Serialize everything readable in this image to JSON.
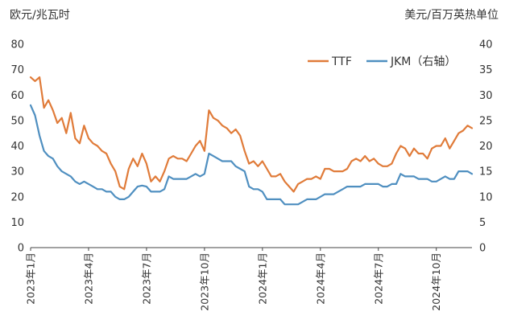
{
  "chart_data": {
    "type": "line",
    "left_axis_unit": "欧元/兆瓦时",
    "right_axis_unit": "美元/百万英热单位",
    "ylim_left": [
      0,
      80
    ],
    "yticks_left": [
      0,
      10,
      20,
      30,
      40,
      50,
      60,
      70,
      80
    ],
    "ylim_right": [
      0,
      40
    ],
    "yticks_right": [
      0,
      5,
      10,
      15,
      20,
      25,
      30,
      35,
      40
    ],
    "x_tick_labels": [
      "2023年1月",
      "2023年4月",
      "2023年7月",
      "2023年10月",
      "2024年1月",
      "2024年4月",
      "2024年7月",
      "2024年10月"
    ],
    "x_ticks_week": [
      0,
      13,
      26,
      39,
      52,
      65,
      78,
      91
    ],
    "x_range_week": [
      0,
      99
    ],
    "grid": false,
    "legend_position": "top-right",
    "series": [
      {
        "name": "TTF",
        "axis": "left",
        "color": "#E07B39",
        "week": [
          0,
          1,
          2,
          3,
          4,
          5,
          6,
          7,
          8,
          9,
          10,
          11,
          12,
          13,
          14,
          15,
          16,
          17,
          18,
          19,
          20,
          21,
          22,
          23,
          24,
          25,
          26,
          27,
          28,
          29,
          30,
          31,
          32,
          33,
          34,
          35,
          36,
          37,
          38,
          39,
          40,
          41,
          42,
          43,
          44,
          45,
          46,
          47,
          48,
          49,
          50,
          51,
          52,
          53,
          54,
          55,
          56,
          57,
          58,
          59,
          60,
          61,
          62,
          63,
          64,
          65,
          66,
          67,
          68,
          69,
          70,
          71,
          72,
          73,
          74,
          75,
          76,
          77,
          78,
          79,
          80,
          81,
          82,
          83,
          84,
          85,
          86,
          87,
          88,
          89,
          90,
          91,
          92,
          93,
          94,
          95,
          96,
          97,
          98,
          99
        ],
        "values": [
          67,
          65.5,
          67,
          55,
          58,
          54,
          49,
          51,
          45,
          53,
          43,
          41,
          48,
          43,
          41,
          40,
          38,
          37,
          33,
          30,
          24,
          23,
          31,
          35,
          32,
          37,
          33,
          26,
          28,
          26,
          30,
          35,
          36,
          35,
          35,
          34,
          37,
          40,
          42,
          38,
          54,
          51,
          50,
          48,
          47,
          45,
          46.5,
          44,
          38,
          33,
          34,
          32,
          34,
          31,
          28,
          28,
          29,
          26,
          24,
          22,
          25,
          26,
          27,
          27,
          28,
          27,
          31,
          31,
          30,
          30,
          30,
          31,
          34,
          35,
          34,
          36,
          34,
          35,
          33,
          32,
          32,
          33,
          37,
          40,
          39,
          36,
          39,
          37,
          37,
          35,
          39,
          40,
          40,
          43,
          39,
          42,
          45,
          46,
          48,
          47
        ]
      },
      {
        "name": "JKM（右轴）",
        "axis": "right",
        "color": "#4F8FC0",
        "week": [
          0,
          1,
          2,
          3,
          4,
          5,
          6,
          7,
          8,
          9,
          10,
          11,
          12,
          13,
          14,
          15,
          16,
          17,
          18,
          19,
          20,
          21,
          22,
          23,
          24,
          25,
          26,
          27,
          28,
          29,
          30,
          31,
          32,
          33,
          34,
          35,
          36,
          37,
          38,
          39,
          40,
          41,
          42,
          43,
          44,
          45,
          46,
          47,
          48,
          49,
          50,
          51,
          52,
          53,
          54,
          55,
          56,
          57,
          58,
          59,
          60,
          61,
          62,
          63,
          64,
          65,
          66,
          67,
          68,
          69,
          70,
          71,
          72,
          73,
          74,
          75,
          76,
          77,
          78,
          79,
          80,
          81,
          82,
          83,
          84,
          85,
          86,
          87,
          88,
          89,
          90,
          91,
          92,
          93,
          94,
          95,
          96,
          97,
          98,
          99
        ],
        "values": [
          28,
          26,
          22,
          19,
          18,
          17.5,
          16,
          15,
          14.5,
          14,
          13,
          12.5,
          13,
          12.5,
          12,
          11.5,
          11.5,
          11,
          11,
          10,
          9.5,
          9.5,
          10,
          11,
          12,
          12.2,
          12,
          11,
          11,
          11,
          11.5,
          14,
          13.5,
          13.5,
          13.5,
          13.5,
          14,
          14.5,
          14,
          14.5,
          18.5,
          18,
          17.5,
          17,
          17,
          17,
          16,
          15.5,
          15,
          12,
          11.5,
          11.5,
          11,
          9.5,
          9.5,
          9.5,
          9.5,
          8.5,
          8.5,
          8.5,
          8.5,
          9,
          9.5,
          9.5,
          9.5,
          10,
          10.5,
          10.5,
          10.5,
          11,
          11.5,
          12,
          12,
          12,
          12,
          12.5,
          12.5,
          12.5,
          12.5,
          12,
          12,
          12.5,
          12.5,
          14.5,
          14,
          14,
          14,
          13.5,
          13.5,
          13.5,
          13,
          13,
          13.5,
          14,
          13.5,
          13.5,
          15,
          15,
          15,
          14.5
        ]
      }
    ]
  }
}
